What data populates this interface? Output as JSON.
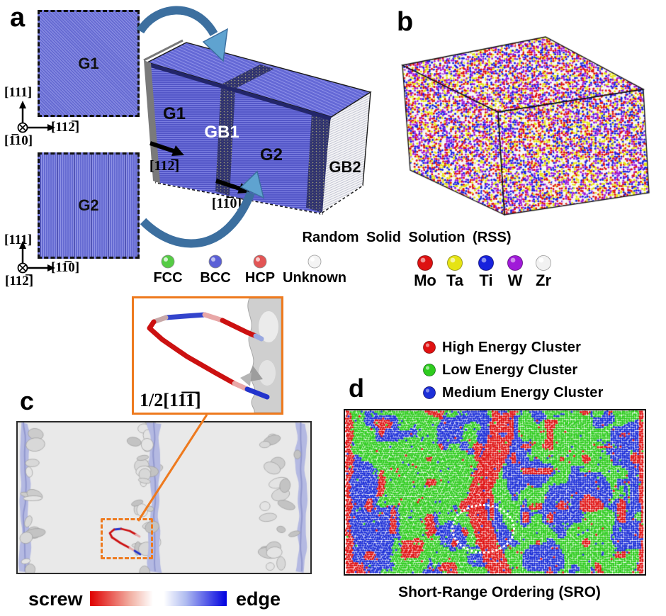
{
  "panel_a": {
    "letter": "a",
    "grain1_label": "G1",
    "grain2_label": "G2",
    "axes_top": {
      "up": "[111]",
      "right": "[112̅]",
      "out": "[1̅10]"
    },
    "axes_bottom": {
      "up": "[111]",
      "right": "[11̅0]",
      "out": "[112̅]"
    },
    "box_labels": {
      "g1": "G1",
      "gb1": "GB1",
      "g2": "G2",
      "gb2": "GB2"
    },
    "dir_arrow1": "[112̅]",
    "dir_arrow2": "[11̅0]",
    "structure_legend": [
      {
        "label": "FCC",
        "color": "#55cc44"
      },
      {
        "label": "BCC",
        "color": "#5a5fd6"
      },
      {
        "label": "HCP",
        "color": "#e25555"
      },
      {
        "label": "Unknown",
        "color": "#f4f4f4"
      }
    ]
  },
  "panel_b": {
    "letter": "b",
    "caption": "Random Solid Solution (RSS)",
    "elements": [
      {
        "label": "Mo",
        "color": "#dd1111"
      },
      {
        "label": "Ta",
        "color": "#e6e313"
      },
      {
        "label": "Ti",
        "color": "#1722dd"
      },
      {
        "label": "W",
        "color": "#a01ad8"
      },
      {
        "label": "Zr",
        "color": "#f2f2f2"
      }
    ]
  },
  "panel_c": {
    "letter": "c",
    "burgers_vector": "1/2[11̅1̅]",
    "colorbar": {
      "left_label": "screw",
      "right_label": "edge",
      "left_color": "#e00000",
      "right_color": "#0000e0"
    }
  },
  "panel_d": {
    "letter": "d",
    "caption": "Short-Range Ordering (SRO)",
    "cluster_legend": [
      {
        "label": "High Energy Cluster",
        "color": "#e01111"
      },
      {
        "label": "Low Energy Cluster",
        "color": "#2ecc1e"
      },
      {
        "label": "Medium Energy Cluster",
        "color": "#1c2fd8"
      }
    ]
  }
}
